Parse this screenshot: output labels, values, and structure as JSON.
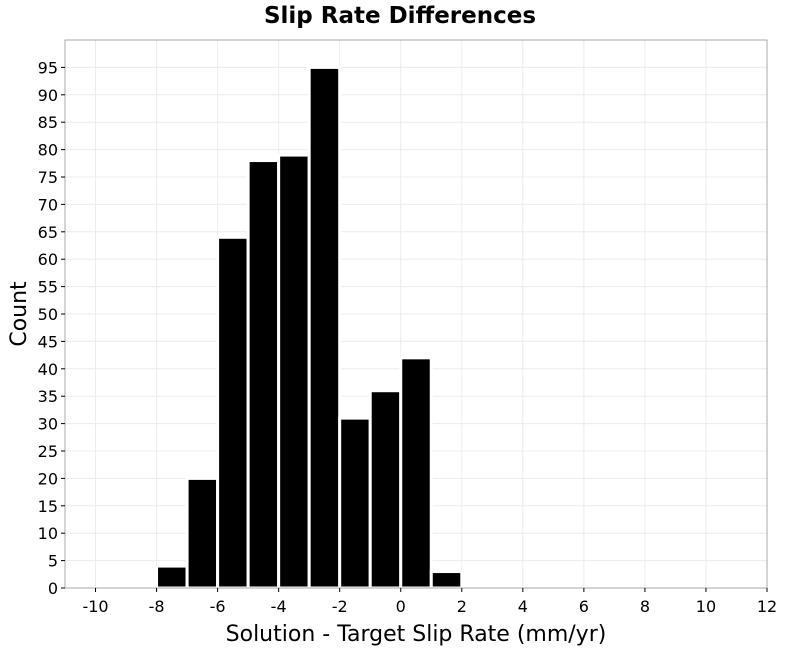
{
  "chart_data": {
    "type": "bar",
    "title": "Slip Rate Differences",
    "xlabel": "Solution - Target Slip Rate (mm/yr)",
    "ylabel": "Count",
    "xlim": [
      -11,
      12
    ],
    "ylim": [
      0,
      100
    ],
    "xticks": [
      -10,
      -8,
      -6,
      -4,
      -2,
      0,
      2,
      4,
      6,
      8,
      10,
      12
    ],
    "yticks": [
      0,
      5,
      10,
      15,
      20,
      25,
      30,
      35,
      40,
      45,
      50,
      55,
      60,
      65,
      70,
      75,
      80,
      85,
      90,
      95
    ],
    "grid": true,
    "bin_width": 1,
    "bins": [
      {
        "x": -7.5,
        "value": 4
      },
      {
        "x": -6.5,
        "value": 20
      },
      {
        "x": -5.5,
        "value": 64
      },
      {
        "x": -4.5,
        "value": 78
      },
      {
        "x": -3.5,
        "value": 79
      },
      {
        "x": -2.5,
        "value": 95
      },
      {
        "x": -1.5,
        "value": 31
      },
      {
        "x": -0.5,
        "value": 36
      },
      {
        "x": 0.5,
        "value": 42
      },
      {
        "x": 1.5,
        "value": 3
      }
    ],
    "colors": {
      "bar": "#000000",
      "bar_edge": "#ffffff",
      "grid": "#ececec",
      "frame": "#aaaaaa"
    }
  }
}
